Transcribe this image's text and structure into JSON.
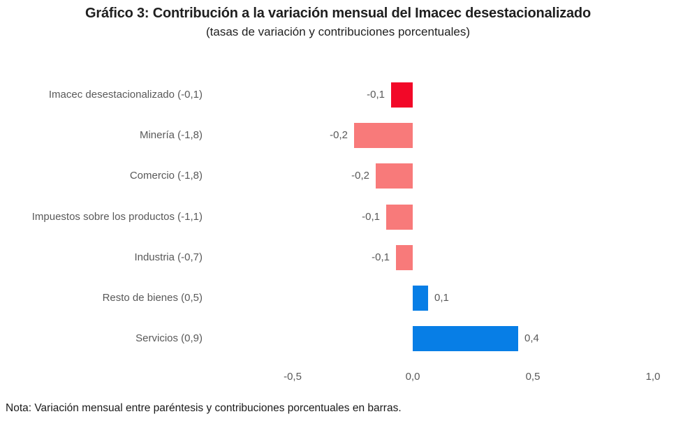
{
  "note": "Nota: Variación mensual entre paréntesis y contribuciones porcentuales en barras.",
  "colors": {
    "total_bar": "#F20828",
    "negative_bar": "#F87A7A",
    "positive_bar": "#077EE6",
    "axis_text": "#595959",
    "title_text": "#1F1F1F"
  },
  "chart_data": {
    "type": "bar",
    "orientation": "horizontal",
    "title": "Gráfico 3: Contribución a la variación mensual del Imacec desestacionalizado",
    "subtitle": "(tasas de variación y contribuciones porcentuales)",
    "xlabel": "",
    "ylabel": "",
    "xlim": [
      -0.5,
      1.0
    ],
    "grid": false,
    "legend": false,
    "categories": [
      "Imacec desestacionalizado (-0,1)",
      "Minería (-1,8)",
      "Comercio (-1,8)",
      "Impuestos sobre los productos (-1,1)",
      "Industria (-0,7)",
      "Resto de bienes (0,5)",
      "Servicios (0,9)"
    ],
    "values": [
      -0.09,
      -0.245,
      -0.155,
      -0.11,
      -0.07,
      0.064,
      0.44
    ],
    "value_labels": [
      "-0,1",
      "-0,2",
      "-0,2",
      "-0,1",
      "-0,1",
      "0,1",
      "0,4"
    ],
    "bar_color_roles": [
      "total_bar",
      "negative_bar",
      "negative_bar",
      "negative_bar",
      "negative_bar",
      "positive_bar",
      "positive_bar"
    ],
    "x_ticks": [
      {
        "value": -0.5,
        "label": "-0,5"
      },
      {
        "value": 0.0,
        "label": "0,0"
      },
      {
        "value": 0.5,
        "label": "0,5"
      },
      {
        "value": 1.0,
        "label": "1,0"
      }
    ]
  }
}
